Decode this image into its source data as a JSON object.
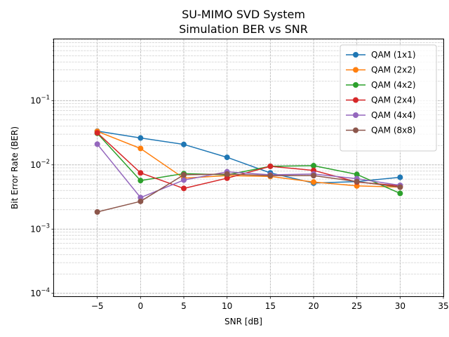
{
  "chart_data": {
    "type": "line",
    "title_lines": [
      "SU-MIMO SVD System",
      "Simulation BER vs SNR"
    ],
    "xlabel": "SNR [dB]",
    "ylabel": "Bit Error Rate (BER)",
    "xlim": [
      -10,
      35
    ],
    "ylim": [
      9e-05,
      0.9
    ],
    "yscale": "log",
    "grid": true,
    "legend_position": "upper right",
    "x_ticks": [
      -5,
      0,
      5,
      10,
      15,
      20,
      25,
      30,
      35
    ],
    "x_tick_labels": [
      "−5",
      "0",
      "5",
      "10",
      "15",
      "20",
      "25",
      "30",
      "35"
    ],
    "y_ticks": [
      0.0001,
      0.001,
      0.01,
      0.1
    ],
    "y_tick_labels": [
      {
        "base": "10",
        "exp": "−4"
      },
      {
        "base": "10",
        "exp": "−3"
      },
      {
        "base": "10",
        "exp": "−2"
      },
      {
        "base": "10",
        "exp": "−1"
      }
    ],
    "x": [
      -5,
      0,
      5,
      10,
      15,
      20,
      25,
      30
    ],
    "series": [
      {
        "name": "QAM (1x1)",
        "color": "#1f77b4",
        "values": [
          0.0335,
          0.0262,
          0.0208,
          0.0131,
          0.0075,
          0.0052,
          0.0055,
          0.0064
        ]
      },
      {
        "name": "QAM (2x2)",
        "color": "#ff7f0e",
        "values": [
          0.0332,
          0.018,
          0.0062,
          0.0068,
          0.0066,
          0.0054,
          0.0047,
          0.0045
        ]
      },
      {
        "name": "QAM (4x2)",
        "color": "#2ca02c",
        "values": [
          0.031,
          0.0057,
          0.0073,
          0.007,
          0.0095,
          0.0097,
          0.0071,
          0.0036
        ]
      },
      {
        "name": "QAM (2x4)",
        "color": "#d62728",
        "values": [
          0.0315,
          0.0075,
          0.0043,
          0.0062,
          0.0095,
          0.0082,
          0.0054,
          0.0047
        ]
      },
      {
        "name": "QAM (4x4)",
        "color": "#9467bd",
        "values": [
          0.021,
          0.0031,
          0.0058,
          0.0078,
          0.007,
          0.0072,
          0.0061,
          0.0048
        ]
      },
      {
        "name": "QAM (8x8)",
        "color": "#8c564b",
        "values": [
          0.00185,
          0.0027,
          0.007,
          0.0072,
          0.0068,
          0.0068,
          0.0055,
          0.0045
        ]
      }
    ]
  }
}
